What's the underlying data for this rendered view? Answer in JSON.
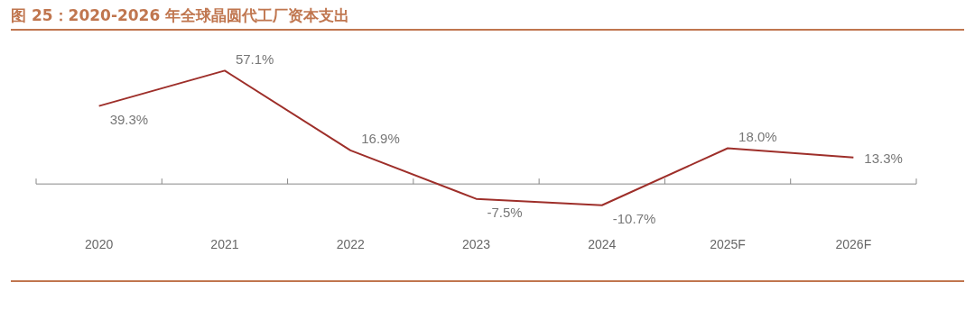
{
  "chart_data": {
    "type": "line",
    "title": "图 25：2020-2026 年全球晶圆代工厂资本支出",
    "categories": [
      "2020",
      "2021",
      "2022",
      "2023",
      "2024",
      "2025F",
      "2026F"
    ],
    "series": [
      {
        "color": "#9e2f2a",
        "values": [
          39.3,
          57.1,
          16.9,
          -7.5,
          -10.7,
          18.0,
          13.3
        ],
        "value_labels": [
          "39.3%",
          "57.1%",
          "16.9%",
          "-7.5%",
          "-10.7%",
          "18.0%",
          "13.3%"
        ]
      }
    ],
    "grid": false,
    "legend": false,
    "marker": "none",
    "line_style": "solid",
    "tick_labels": "x"
  }
}
